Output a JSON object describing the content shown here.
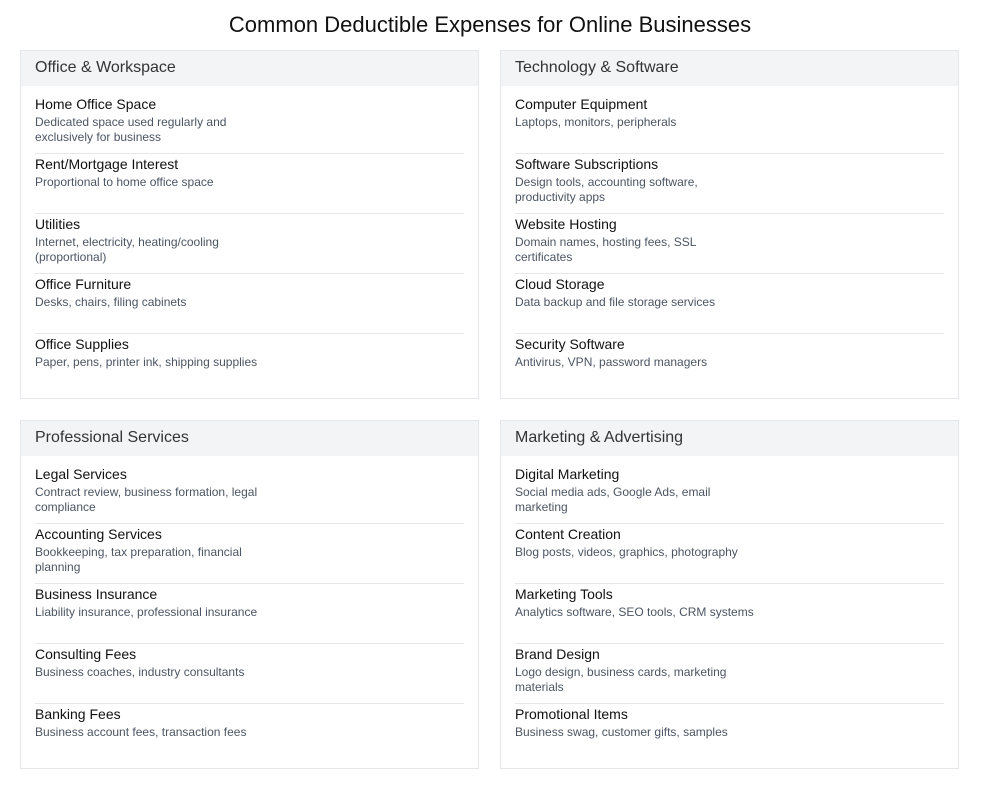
{
  "title": "Common Deductible Expenses for Online Businesses",
  "categories": [
    {
      "name": "Office & Workspace",
      "items": [
        {
          "title": "Home Office Space",
          "desc": "Dedicated space used regularly and exclusively for business"
        },
        {
          "title": "Rent/Mortgage Interest",
          "desc": "Proportional to home office space"
        },
        {
          "title": "Utilities",
          "desc": "Internet, electricity, heating/cooling (proportional)"
        },
        {
          "title": "Office Furniture",
          "desc": "Desks, chairs, filing cabinets"
        },
        {
          "title": "Office Supplies",
          "desc": "Paper, pens, printer ink, shipping supplies"
        }
      ]
    },
    {
      "name": "Technology & Software",
      "items": [
        {
          "title": "Computer Equipment",
          "desc": "Laptops, monitors, peripherals"
        },
        {
          "title": "Software Subscriptions",
          "desc": "Design tools, accounting software, productivity apps"
        },
        {
          "title": "Website Hosting",
          "desc": "Domain names, hosting fees, SSL certificates"
        },
        {
          "title": "Cloud Storage",
          "desc": "Data backup and file storage services"
        },
        {
          "title": "Security Software",
          "desc": "Antivirus, VPN, password managers"
        }
      ]
    },
    {
      "name": "Professional Services",
      "items": [
        {
          "title": "Legal Services",
          "desc": "Contract review, business formation, legal compliance"
        },
        {
          "title": "Accounting Services",
          "desc": "Bookkeeping, tax preparation, financial planning"
        },
        {
          "title": "Business Insurance",
          "desc": "Liability insurance, professional insurance"
        },
        {
          "title": "Consulting Fees",
          "desc": "Business coaches, industry consultants"
        },
        {
          "title": "Banking Fees",
          "desc": "Business account fees, transaction fees"
        }
      ]
    },
    {
      "name": "Marketing & Advertising",
      "items": [
        {
          "title": "Digital Marketing",
          "desc": "Social media ads, Google Ads, email marketing"
        },
        {
          "title": "Content Creation",
          "desc": "Blog posts, videos, graphics, photography"
        },
        {
          "title": "Marketing Tools",
          "desc": "Analytics software, SEO tools, CRM systems"
        },
        {
          "title": "Brand Design",
          "desc": "Logo design, business cards, marketing materials"
        },
        {
          "title": "Promotional Items",
          "desc": "Business swag, customer gifts, samples"
        }
      ]
    }
  ]
}
